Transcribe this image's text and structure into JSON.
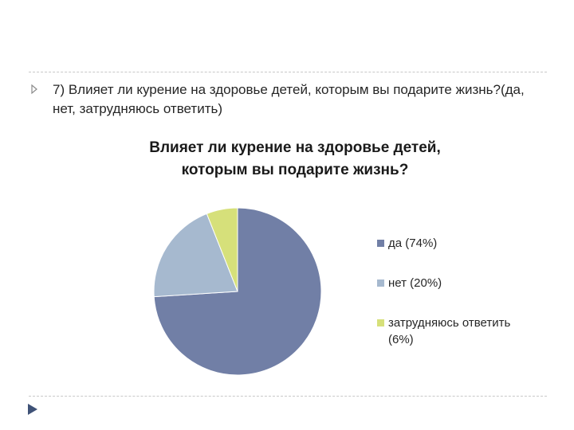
{
  "slide": {
    "bullet_text": "7) Влияет ли курение на здоровье детей, которым вы подарите жизнь?(да, нет, затрудняюсь ответить)",
    "bullet_icon": "triangle-right-icon",
    "nav_icon": "triangle-right-icon"
  },
  "chart_data": {
    "type": "pie",
    "title": "Влияет ли курение на здоровье детей, которым вы подарите жизнь?",
    "categories": [
      "да (74%)",
      "нет (20%)",
      "затрудняюсь ответить (6%)"
    ],
    "values": [
      74,
      20,
      6
    ],
    "colors": [
      "#717fa6",
      "#a6b9cf",
      "#d6e07a"
    ],
    "legend_position": "right"
  }
}
